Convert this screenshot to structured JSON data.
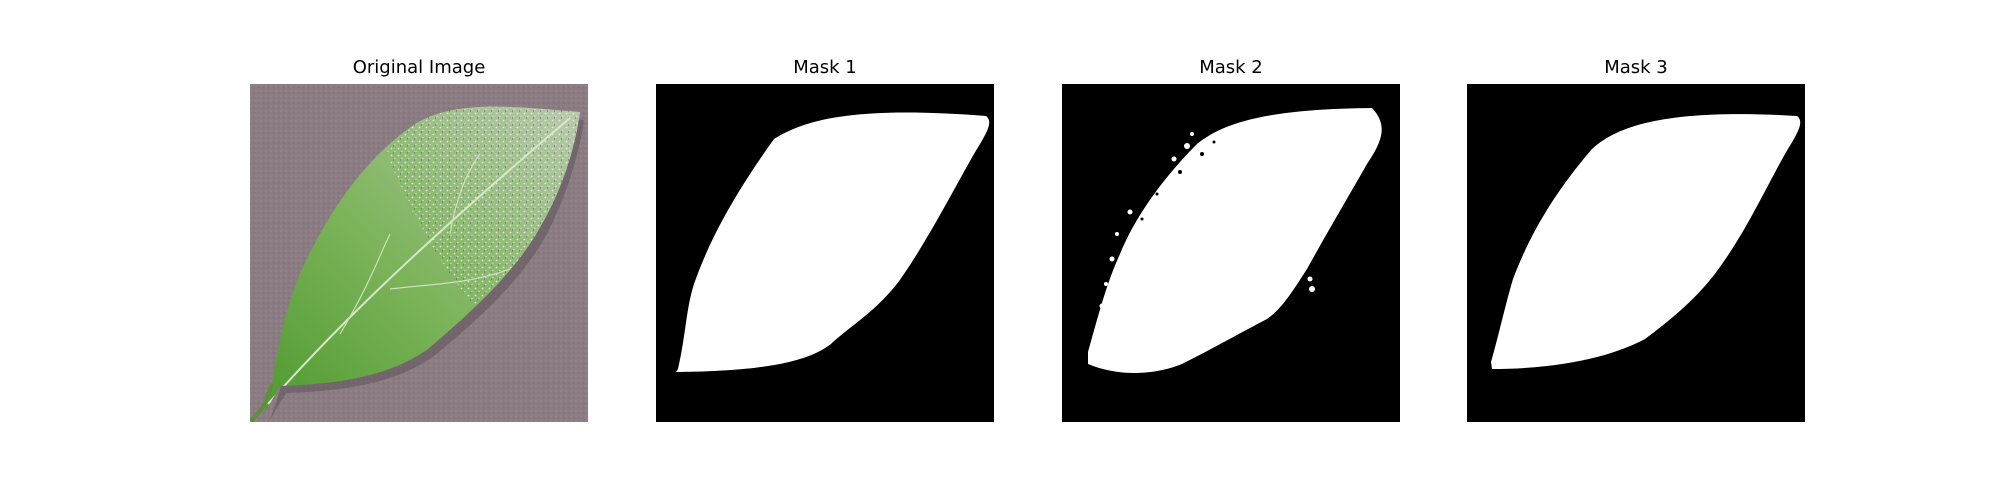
{
  "figure": {
    "panels": [
      {
        "title": "Original Image"
      },
      {
        "title": "Mask 1"
      },
      {
        "title": "Mask 2"
      },
      {
        "title": "Mask 3"
      }
    ]
  },
  "colors": {
    "mask_background": "#000000",
    "mask_foreground": "#ffffff",
    "photo_background": "#8e7f86",
    "leaf_green": "#6ea84a",
    "leaf_dark": "#3f7a2c",
    "leaf_pale": "#c9d6bf"
  }
}
